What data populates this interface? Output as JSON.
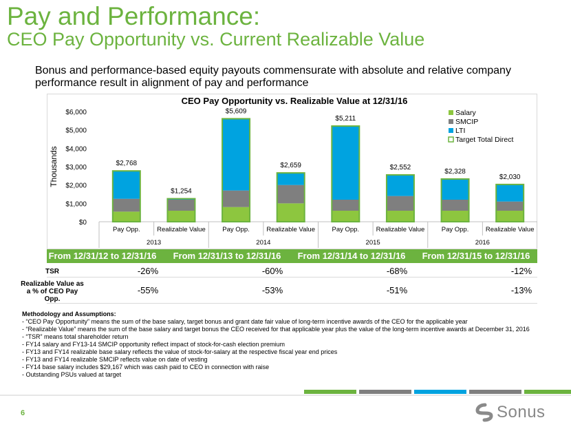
{
  "slide": {
    "title": "Pay and Performance:",
    "subtitle": "CEO Pay Opportunity vs. Current Realizable Value",
    "lead": "Bonus and performance-based equity payouts commensurate with absolute and relative company performance result in alignment of pay and performance",
    "page_number": "6",
    "logo_text": "Sonus"
  },
  "chart_data": {
    "type": "bar",
    "stacked": true,
    "title": "CEO Pay Opportunity vs. Realizable Value at 12/31/16",
    "ylabel": "Thousands",
    "ylim": [
      0,
      6000
    ],
    "yticks": [
      "$0",
      "$1,000",
      "$2,000",
      "$3,000",
      "$4,000",
      "$5,000",
      "$6,000"
    ],
    "ytick_values": [
      0,
      1000,
      2000,
      3000,
      4000,
      5000,
      6000
    ],
    "categories": [
      "Pay Opp.",
      "Realizable Value",
      "Pay Opp.",
      "Realizable Value",
      "Pay Opp.",
      "Realizable Value",
      "Pay Opp.",
      "Realizable Value"
    ],
    "groups": [
      "2013",
      "2014",
      "2015",
      "2016"
    ],
    "totals": [
      2768,
      1254,
      5609,
      2659,
      5211,
      2552,
      2328,
      2030
    ],
    "total_labels": [
      "$2,768",
      "$1,254",
      "$5,609",
      "$2,659",
      "$5,211",
      "$2,552",
      "$2,328",
      "$2,030"
    ],
    "series": [
      {
        "name": "Salary",
        "color": "#8dc63f",
        "values": [
          550,
          600,
          800,
          1000,
          600,
          600,
          600,
          600
        ]
      },
      {
        "name": "SMCIP",
        "color": "#7f7f7f",
        "values": [
          700,
          600,
          900,
          1000,
          600,
          800,
          600,
          500
        ]
      },
      {
        "name": "LTI",
        "color": "#00a3e0",
        "values": [
          1518,
          54,
          3909,
          659,
          4011,
          1152,
          1128,
          930
        ]
      }
    ],
    "legend": [
      "Salary",
      "SMCIP",
      "LTI",
      "Target Total Direct"
    ],
    "outline_series": "Target Total Direct",
    "outline_color": "#6cb33f"
  },
  "table": {
    "periods": [
      "From 12/31/12 to 12/31/16",
      "From 12/31/13 to 12/31/16",
      "From 12/31/14 to 12/31/16",
      "From 12/31/15 to 12/31/16"
    ],
    "rows": [
      {
        "label": "TSR",
        "values": [
          "-26%",
          "-60%",
          "-68%",
          "-12%"
        ]
      },
      {
        "label": "Realizable Value as a % of CEO Pay Opp.",
        "values": [
          "-55%",
          "-53%",
          "-51%",
          "-13%"
        ]
      }
    ]
  },
  "notes": {
    "heading": "Methodology and Assumptions:",
    "items": [
      "- “CEO Pay Opportunity” means the sum of the base salary, target bonus and grant date fair value of long-term incentive awards of the CEO for the applicable year",
      "- “Realizable Value” means the sum of the base salary and target bonus the CEO received for that applicable year plus the value of the long-term incentive awards at December 31, 2016",
      "- “TSR” means total shareholder return",
      "- FY14 salary and FY13-14 SMCIP opportunity reflect impact of stock-for-cash election premium",
      "- FY13 and FY14 realizable base salary reflects the value of stock-for-salary at the respective fiscal year end prices",
      "- FY13 and FY14 realizable SMCIP reflects value on date of vesting",
      "- FY14 base salary includes $29,167 which was cash paid to CEO in connection with raise",
      "- Outstanding PSUs valued at target"
    ]
  },
  "colors": {
    "brand_green": "#6cb33f",
    "deco": [
      "#6cb33f",
      "#7f7f7f",
      "#00a3e0",
      "#7f7f7f",
      "#6cb33f"
    ]
  }
}
